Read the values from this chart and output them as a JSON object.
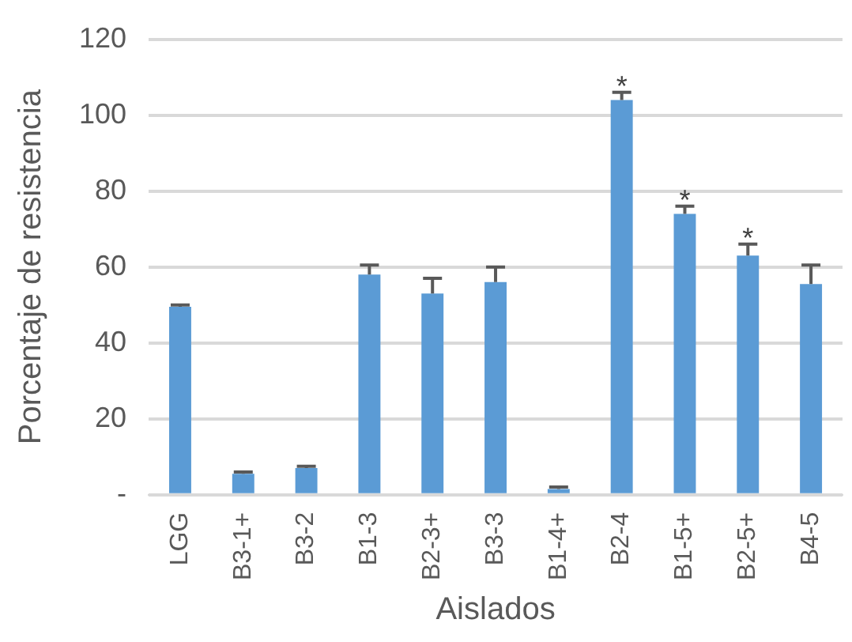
{
  "chart_data": {
    "type": "bar",
    "xlabel": "Aislados",
    "ylabel": "Porcentaje de resistencia",
    "categories": [
      "LGG",
      "B3-1+",
      "B3-2",
      "B1-3",
      "B2-3+",
      "B3-3",
      "B1-4+",
      "B2-4",
      "B1-5+",
      "B2-5+",
      "B4-5"
    ],
    "values": [
      49.5,
      5.5,
      7,
      58,
      53,
      56,
      1.5,
      104,
      74,
      63,
      55.5
    ],
    "errors": [
      [
        49.5,
        50
      ],
      [
        5.5,
        6
      ],
      [
        7,
        7.5
      ],
      [
        58,
        60.5
      ],
      [
        53,
        57
      ],
      [
        56,
        60
      ],
      [
        1.5,
        2
      ],
      [
        104,
        106
      ],
      [
        74,
        76
      ],
      [
        63,
        66
      ],
      [
        55.5,
        60.5
      ]
    ],
    "color": "#5b9bd5",
    "ylim": [
      0,
      120
    ],
    "yticks": [
      {
        "value": 0,
        "label": "-"
      },
      20,
      40,
      60,
      80,
      100,
      120
    ],
    "grid": "y",
    "legend": false,
    "annotations": [
      {
        "text": "*",
        "x": "B2-4",
        "y": 106
      },
      {
        "text": "*",
        "x": "B1-5+",
        "y": 76
      },
      {
        "text": "*",
        "x": "B2-5+",
        "y": 66
      }
    ]
  }
}
